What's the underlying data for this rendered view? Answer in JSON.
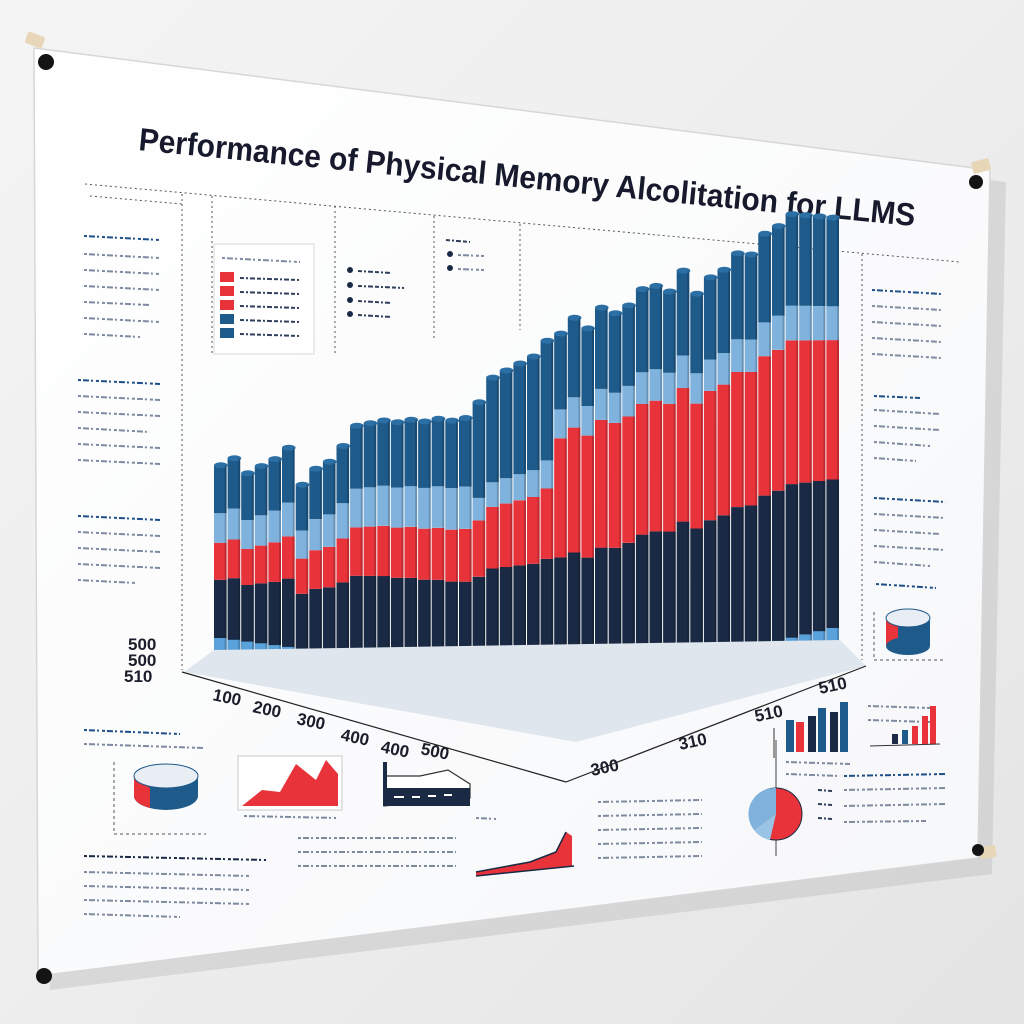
{
  "poster": {
    "title": "Performance of Physical Memory Alcolitation for LLMS",
    "colors": {
      "red": "#e8333a",
      "light_blue": "#7fb3dd",
      "dark_blue": "#1e5a8a",
      "navy": "#1a2a44"
    }
  },
  "chart_data": {
    "type": "bar",
    "style": "3d-stacked",
    "title": "Performance of Physical Memory Alcolitation for LLMS",
    "x_tick_labels": [
      "100",
      "200",
      "300",
      "400",
      "400",
      "500"
    ],
    "back_tick_labels": [
      "510",
      "510",
      "310",
      "300"
    ],
    "y_tick_labels": [
      "500",
      "500",
      "510"
    ],
    "series_colors": [
      "#1a2a44",
      "#e8333a",
      "#7fb3dd",
      "#1e5a8a"
    ],
    "bar_heights": [
      0.42,
      0.44,
      0.41,
      0.43,
      0.45,
      0.48,
      0.4,
      0.44,
      0.46,
      0.5,
      0.55,
      0.56,
      0.57,
      0.57,
      0.58,
      0.58,
      0.59,
      0.59,
      0.6,
      0.64,
      0.7,
      0.72,
      0.74,
      0.76,
      0.8,
      0.82,
      0.86,
      0.84,
      0.88,
      0.86,
      0.87,
      0.9,
      0.9,
      0.88,
      0.92,
      0.86,
      0.89,
      0.9,
      0.93,
      0.92,
      0.96,
      0.97,
      0.99,
      0.98,
      0.97,
      0.96
    ]
  }
}
